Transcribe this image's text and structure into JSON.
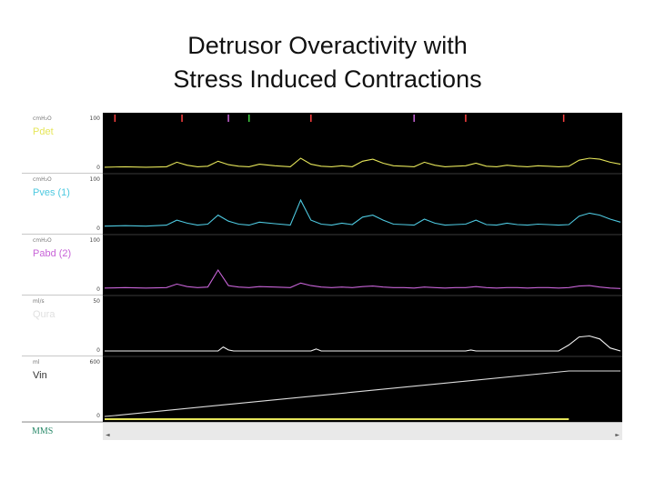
{
  "slide": {
    "title_line1": "Detrusor Overactivity with",
    "title_line2": "Stress Induced Contractions"
  },
  "brand": {
    "name": "MMS"
  },
  "channels": [
    {
      "unit": "cmH₂O",
      "name": "Pdet",
      "scale_top": "100",
      "scale_bottom": "0",
      "color": "#e6e65a"
    },
    {
      "unit": "cmH₂O",
      "name": "Pves (1)",
      "scale_top": "100",
      "scale_bottom": "0",
      "color": "#4ec9e0"
    },
    {
      "unit": "cmH₂O",
      "name": "Pabd (2)",
      "scale_top": "100",
      "scale_bottom": "0",
      "color": "#c864d8"
    },
    {
      "unit": "ml/s",
      "name": "Qura",
      "scale_top": "50",
      "scale_bottom": "0",
      "color": "#f2f2f2"
    },
    {
      "unit": "ml",
      "name": "Vin",
      "scale_top": "600",
      "scale_bottom": "0",
      "color": "#dddddd"
    }
  ],
  "time_axis": {
    "scroll_left": "◄",
    "scroll_right": "►"
  },
  "marker_colors": [
    "#ff4040",
    "#ff4040",
    "#c864d8",
    "#40d040",
    "#ff4040",
    "#c864d8"
  ],
  "chart_data": {
    "type": "line",
    "title": "Detrusor Overactivity with Stress Induced Contractions",
    "x_domain": [
      0,
      100
    ],
    "series": [
      {
        "name": "Pdet",
        "ylim": [
          0,
          100
        ],
        "x": [
          0,
          4,
          8,
          12,
          14,
          16,
          18,
          20,
          22,
          24,
          26,
          28,
          30,
          33,
          36,
          38,
          40,
          42,
          44,
          46,
          48,
          50,
          52,
          54,
          56,
          58,
          60,
          62,
          64,
          66,
          68,
          70,
          72,
          74,
          76,
          78,
          80,
          82,
          84,
          86,
          88,
          90,
          92,
          94,
          96,
          98,
          100
        ],
        "y": [
          2,
          3,
          2,
          3,
          12,
          6,
          3,
          4,
          14,
          7,
          4,
          3,
          8,
          5,
          3,
          20,
          8,
          4,
          3,
          5,
          3,
          14,
          18,
          10,
          5,
          4,
          3,
          12,
          6,
          3,
          4,
          5,
          10,
          4,
          3,
          6,
          4,
          3,
          5,
          4,
          3,
          4,
          16,
          20,
          18,
          12,
          8
        ]
      },
      {
        "name": "Pves (1)",
        "ylim": [
          0,
          100
        ],
        "x": [
          0,
          4,
          8,
          12,
          14,
          16,
          18,
          20,
          22,
          24,
          26,
          28,
          30,
          33,
          36,
          38,
          40,
          42,
          44,
          46,
          48,
          50,
          52,
          54,
          56,
          58,
          60,
          62,
          64,
          66,
          68,
          70,
          72,
          74,
          76,
          78,
          80,
          82,
          84,
          86,
          88,
          90,
          92,
          94,
          96,
          98,
          100
        ],
        "y": [
          6,
          7,
          6,
          8,
          18,
          12,
          8,
          10,
          28,
          16,
          10,
          8,
          14,
          11,
          8,
          58,
          18,
          10,
          8,
          12,
          9,
          24,
          28,
          18,
          10,
          9,
          8,
          20,
          12,
          8,
          9,
          10,
          18,
          9,
          8,
          12,
          9,
          8,
          10,
          9,
          8,
          9,
          26,
          32,
          28,
          20,
          14
        ]
      },
      {
        "name": "Pabd (2)",
        "ylim": [
          0,
          100
        ],
        "x": [
          0,
          4,
          8,
          12,
          14,
          16,
          18,
          20,
          22,
          24,
          26,
          28,
          30,
          33,
          36,
          38,
          40,
          42,
          44,
          46,
          48,
          50,
          52,
          54,
          56,
          58,
          60,
          62,
          64,
          66,
          68,
          70,
          72,
          74,
          76,
          78,
          80,
          82,
          84,
          86,
          88,
          90,
          92,
          94,
          96,
          98,
          100
        ],
        "y": [
          4,
          5,
          4,
          5,
          12,
          7,
          5,
          6,
          40,
          9,
          6,
          5,
          7,
          6,
          5,
          14,
          9,
          6,
          5,
          6,
          5,
          7,
          8,
          6,
          5,
          5,
          4,
          6,
          5,
          4,
          5,
          5,
          7,
          5,
          4,
          5,
          5,
          4,
          5,
          5,
          4,
          5,
          8,
          9,
          6,
          4,
          3
        ]
      },
      {
        "name": "Qura",
        "ylim": [
          0,
          50
        ],
        "x": [
          0,
          22,
          23,
          24,
          25,
          40,
          41,
          42,
          70,
          71,
          72,
          88,
          90,
          92,
          94,
          96,
          98,
          100
        ],
        "y": [
          0,
          0,
          4,
          1,
          0,
          0,
          2,
          0,
          0,
          1,
          0,
          0,
          6,
          14,
          15,
          12,
          3,
          0
        ]
      },
      {
        "name": "Vin",
        "ylim": [
          0,
          600
        ],
        "x": [
          0,
          2,
          90,
          100
        ],
        "y": [
          0,
          10,
          500,
          500
        ]
      }
    ]
  }
}
